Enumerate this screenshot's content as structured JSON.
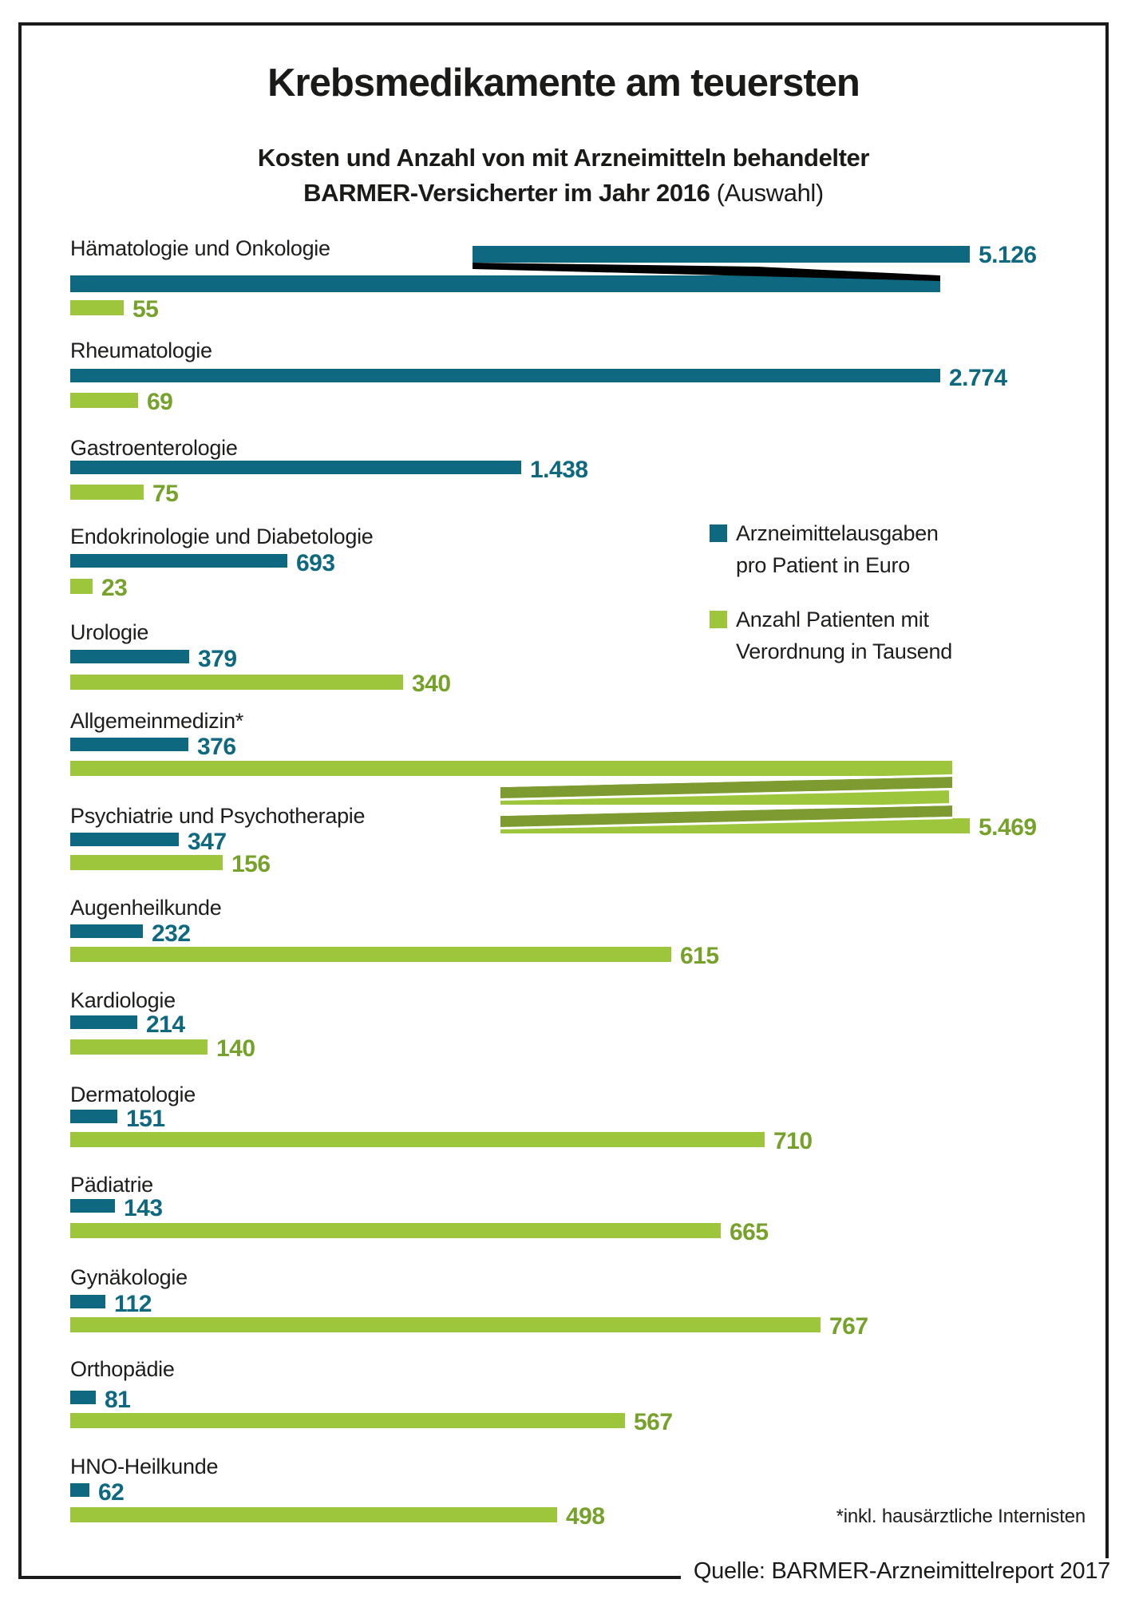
{
  "header": {
    "title": "Krebsmedikamente am teuersten",
    "subtitle_line1": "Kosten und Anzahl von mit Arzneimitteln behandelter",
    "subtitle_line2_bold": "BARMER-Versicherter im Jahr 2016",
    "subtitle_line2_light": "(Auswahl)"
  },
  "legend": {
    "items": [
      {
        "name": "euro",
        "swatch_color": "#0E6880",
        "lines": [
          "Arzneimittelausgaben",
          "pro Patient in Euro"
        ]
      },
      {
        "name": "patients",
        "swatch_color": "#9DC63C",
        "lines": [
          "Anzahl Patienten mit",
          "Verordnung in Tausend"
        ]
      }
    ]
  },
  "footnote": "*inkl. hausärztliche Internisten",
  "source": "Quelle: BARMER-Arzneimittelreport 2017",
  "colors": {
    "euro_bar": "#0E6880",
    "patients_bar": "#9DC63C",
    "patients_bar_fold": "#7E9B31",
    "euro_value_text": "#0E6880",
    "patients_value_text": "#76A22B",
    "text": "#1D1D1B",
    "break_fold_euro": "#000000"
  },
  "chart_data": {
    "type": "bar",
    "orientation": "horizontal",
    "title": "Krebsmedikamente am teuersten",
    "subtitle": "Kosten und Anzahl von mit Arzneimitteln behandelter BARMER-Versicherter im Jahr 2016 (Auswahl)",
    "categories": [
      "Hämatologie und Onkologie",
      "Rheumatologie",
      "Gastroenterologie",
      "Endokrinologie und Diabetologie",
      "Urologie",
      "Allgemeinmedizin*",
      "Psychiatrie und Psychotherapie",
      "Augenheilkunde",
      "Kardiologie",
      "Dermatologie",
      "Pädiatrie",
      "Gynäkologie",
      "Orthopädie",
      "HNO-Heilkunde"
    ],
    "series": [
      {
        "name": "Arzneimittelausgaben pro Patient in Euro",
        "color": "#0E6880",
        "values": [
          5126,
          2774,
          1438,
          693,
          379,
          376,
          347,
          232,
          214,
          151,
          143,
          112,
          81,
          62
        ],
        "display_values": [
          "5.126",
          "2.774",
          "1.438",
          "693",
          "379",
          "376",
          "347",
          "232",
          "214",
          "151",
          "143",
          "112",
          "81",
          "62"
        ]
      },
      {
        "name": "Anzahl Patienten mit Verordnung in Tausend",
        "color": "#9DC63C",
        "values": [
          55,
          69,
          75,
          23,
          340,
          5469,
          156,
          615,
          140,
          710,
          665,
          767,
          567,
          498
        ],
        "display_values": [
          "55",
          "69",
          "75",
          "23",
          "340",
          "5.469",
          "156",
          "615",
          "140",
          "710",
          "665",
          "767",
          "567",
          "498"
        ]
      }
    ],
    "broken_bars": [
      {
        "category_index": 0,
        "series_index": 0,
        "note": "bar for 5.126 drawn folded/broken"
      },
      {
        "category_index": 5,
        "series_index": 1,
        "note": "bar for 5.469 drawn folded/broken twice"
      }
    ],
    "legend_position": "right-upper-area",
    "grid": false,
    "footnote_marker_on": "Allgemeinmedizin*"
  }
}
